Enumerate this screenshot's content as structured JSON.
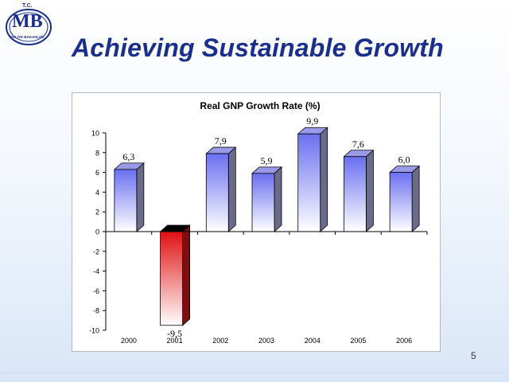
{
  "slide": {
    "title": "Achieving Sustainable Growth",
    "page_number": "5"
  },
  "logo": {
    "top_text": "T.C.",
    "main_text": "MB",
    "ring_text": "MALİYE BAKANLIĞI"
  },
  "colors": {
    "title": "#1a2f8c",
    "positive_bar": "#6a6ff0",
    "negative_bar": "#e01010"
  },
  "chart_data": {
    "type": "bar",
    "title": "Real GNP Growth Rate (%)",
    "categories": [
      "2000",
      "2001",
      "2002",
      "2003",
      "2004",
      "2005",
      "2006"
    ],
    "values": [
      6.3,
      -9.5,
      7.9,
      5.9,
      9.9,
      7.6,
      6.0
    ],
    "value_labels": [
      "6,3",
      "-9,5",
      "7,9",
      "5,9",
      "9,9",
      "7,6",
      "6,0"
    ],
    "y_ticks": [
      "10",
      "8",
      "6",
      "4",
      "2",
      "0",
      "-2",
      "-4",
      "-6",
      "-8",
      "-10"
    ],
    "ylim": [
      -10,
      10
    ],
    "grid": false,
    "legend": "none",
    "xlabel": "",
    "ylabel": ""
  }
}
